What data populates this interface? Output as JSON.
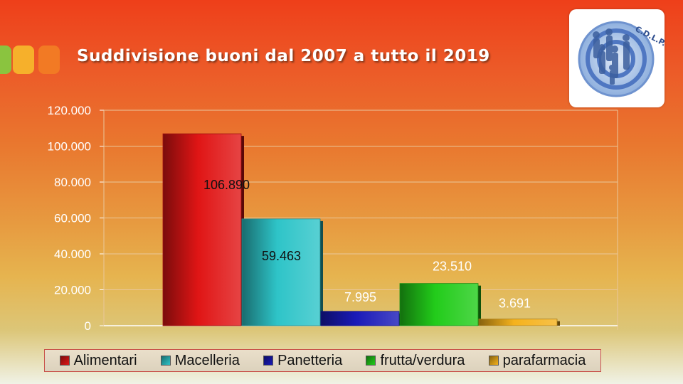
{
  "slide": {
    "title": "Suddivisione buoni dal 2007 a tutto il 2019",
    "accent_colors": [
      "#8ac43f",
      "#f6b02b",
      "#f27a24"
    ],
    "logo": {
      "text": "C.D.L.P. ODV",
      "icon": "organization-logo"
    }
  },
  "chart_data": {
    "type": "bar",
    "title": "",
    "xlabel": "",
    "ylabel": "",
    "ylim": [
      0,
      120000
    ],
    "yticks": [
      0,
      20000,
      40000,
      60000,
      80000,
      100000,
      120000
    ],
    "ytick_labels": [
      "0",
      "20.000",
      "40.000",
      "60.000",
      "80.000",
      "100.000",
      "120.000"
    ],
    "grid": true,
    "legend_position": "bottom",
    "series": [
      {
        "name": "Alimentari",
        "value": 106890,
        "label": "106.890",
        "color": "#e01515"
      },
      {
        "name": "Macelleria",
        "value": 59463,
        "label": "59.463",
        "color": "#2ec4c8"
      },
      {
        "name": "Panetteria",
        "value": 7995,
        "label": "7.995",
        "color": "#1a1ab8"
      },
      {
        "name": "frutta/verdura",
        "value": 23510,
        "label": "23.510",
        "color": "#22cc1a"
      },
      {
        "name": "parafarmacia",
        "value": 3691,
        "label": "3.691",
        "color": "#f5b21c"
      }
    ]
  }
}
